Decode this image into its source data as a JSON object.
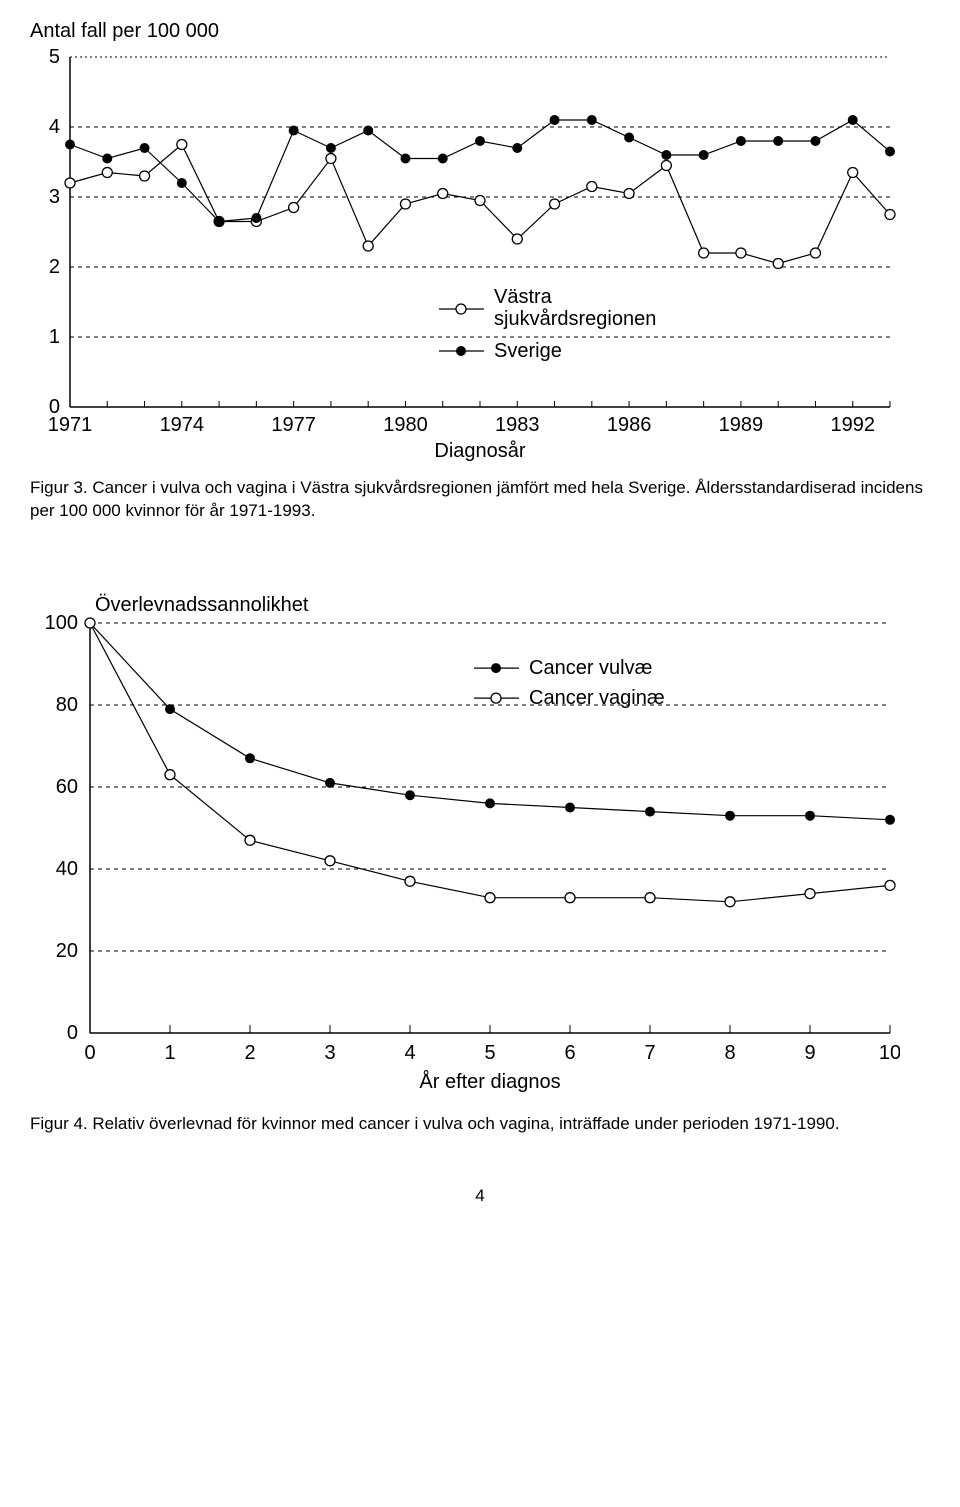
{
  "chart1": {
    "type": "line",
    "title": "Antal fall per 100 000",
    "xlabel": "Diagnosår",
    "xlim": [
      1971,
      1993
    ],
    "ylim": [
      0,
      5
    ],
    "ytick_step": 1,
    "xticks": [
      1971,
      1974,
      1977,
      1980,
      1983,
      1986,
      1989,
      1992
    ],
    "background_color": "#ffffff",
    "grid_color": "#000000",
    "line_width": 1.2,
    "marker_size": 5,
    "series": [
      {
        "name": "Västra sjukvårdsregionen",
        "color": "#000000",
        "marker": "open-circle",
        "x": [
          1971,
          1972,
          1973,
          1974,
          1975,
          1976,
          1977,
          1978,
          1979,
          1980,
          1981,
          1982,
          1983,
          1984,
          1985,
          1986,
          1987,
          1988,
          1989,
          1990,
          1991,
          1992,
          1993
        ],
        "y": [
          3.2,
          3.35,
          3.3,
          3.75,
          2.65,
          2.65,
          2.85,
          3.55,
          2.3,
          2.9,
          3.05,
          2.95,
          2.4,
          2.9,
          3.15,
          3.05,
          3.45,
          2.2,
          2.2,
          2.05,
          2.2,
          3.35,
          2.75
        ]
      },
      {
        "name": "Sverige",
        "color": "#000000",
        "marker": "filled-circle",
        "x": [
          1971,
          1972,
          1973,
          1974,
          1975,
          1976,
          1977,
          1978,
          1979,
          1980,
          1981,
          1982,
          1983,
          1984,
          1985,
          1986,
          1987,
          1988,
          1989,
          1990,
          1991,
          1992,
          1993
        ],
        "y": [
          3.75,
          3.55,
          3.7,
          3.2,
          2.65,
          2.7,
          3.95,
          3.7,
          3.95,
          3.55,
          3.55,
          3.8,
          3.7,
          4.1,
          4.1,
          3.85,
          3.6,
          3.6,
          3.8,
          3.8,
          3.8,
          4.1,
          3.65
        ]
      }
    ]
  },
  "caption1": "Figur 3. Cancer i vulva och vagina i Västra sjukvårdsregionen jämfört med hela Sverige. Åldersstandardiserad incidens per 100 000 kvinnor för år 1971-1993.",
  "chart2": {
    "type": "line",
    "title": "Överlevnadssannolikhet",
    "xlabel": "År efter diagnos",
    "xlim": [
      0,
      10
    ],
    "ylim": [
      0,
      100
    ],
    "ytick_step": 20,
    "xtick_step": 1,
    "background_color": "#ffffff",
    "grid_color": "#000000",
    "line_width": 1.2,
    "marker_size": 5,
    "series": [
      {
        "name": "Cancer vulvæ",
        "color": "#000000",
        "marker": "filled-circle",
        "x": [
          0,
          1,
          2,
          3,
          4,
          5,
          6,
          7,
          8,
          9,
          10
        ],
        "y": [
          100,
          79,
          67,
          61,
          58,
          56,
          55,
          54,
          53,
          53,
          52
        ]
      },
      {
        "name": "Cancer vaginæ",
        "color": "#000000",
        "marker": "open-circle",
        "x": [
          0,
          1,
          2,
          3,
          4,
          5,
          6,
          7,
          8,
          9,
          10
        ],
        "y": [
          100,
          63,
          47,
          42,
          37,
          33,
          33,
          33,
          32,
          34,
          36
        ]
      }
    ]
  },
  "caption2": "Figur 4. Relativ överlevnad för kvinnor med cancer i vulva och vagina, inträffade under perioden 1971-1990.",
  "page_number": "4"
}
